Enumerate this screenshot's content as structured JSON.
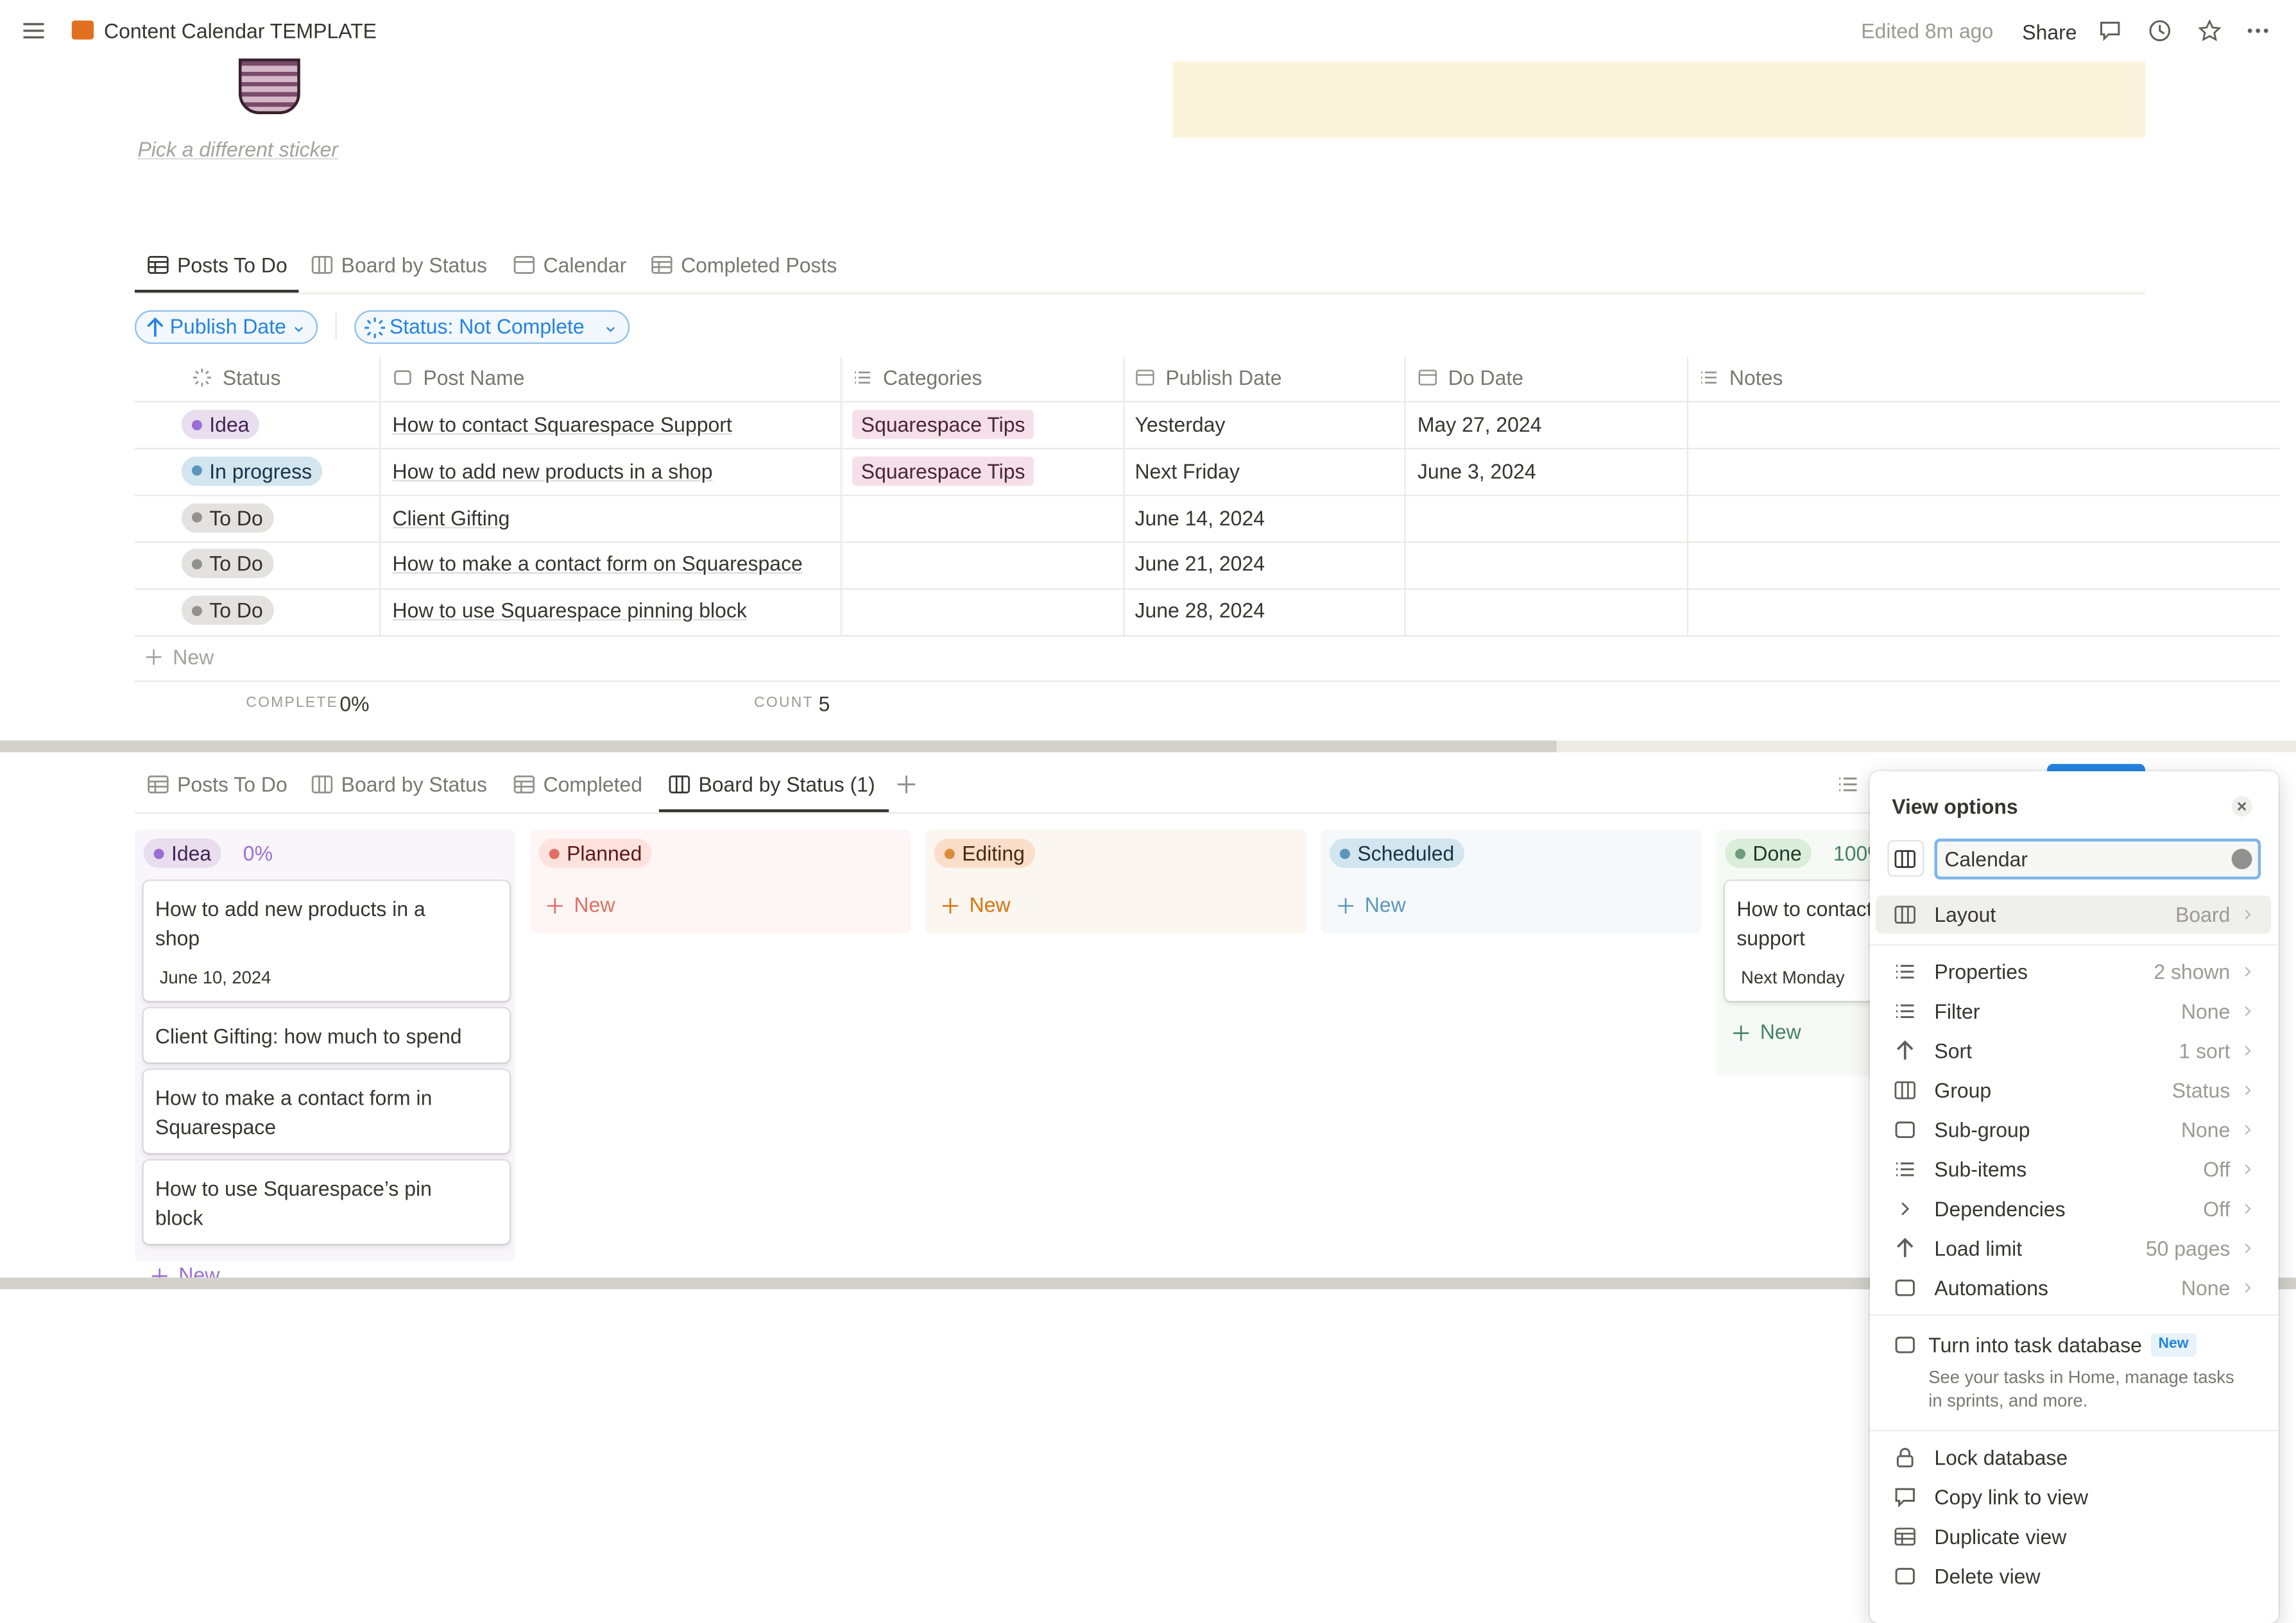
{
  "topbar": {
    "title": "Content Calendar TEMPLATE",
    "edited": "Edited 8m ago",
    "share": "Share"
  },
  "sticker_caption": "Pick a different sticker",
  "tabs_top": [
    "Posts To Do",
    "Board by Status",
    "Calendar",
    "Completed Posts"
  ],
  "filters": [
    "Publish Date",
    "Status: Not Complete"
  ],
  "table": {
    "columns": [
      "Status",
      "Post Name",
      "Categories",
      "Publish Date",
      "Do Date",
      "Notes"
    ],
    "rows": [
      {
        "status": {
          "label": "Idea",
          "color": "purple"
        },
        "name": "How to contact Squarespace Support",
        "category": "Squarespace Tips",
        "publish_date": "Yesterday",
        "do_date": "May 27, 2024"
      },
      {
        "status": {
          "label": "In progress",
          "color": "blue"
        },
        "name": "How to add new products in a shop",
        "category": "Squarespace Tips",
        "publish_date": "Next Friday",
        "do_date": "June 3, 2024"
      },
      {
        "status": {
          "label": "To Do",
          "color": "gray"
        },
        "name": "Client Gifting",
        "publish_date": "June 14, 2024"
      },
      {
        "status": {
          "label": "To Do",
          "color": "gray"
        },
        "name": "How to make a contact form on Squarespace",
        "publish_date": "June 21, 2024"
      },
      {
        "status": {
          "label": "To Do",
          "color": "gray"
        },
        "name": "How to use Squarespace pinning block",
        "publish_date": "June 28, 2024"
      }
    ],
    "new_row": "New",
    "footer": {
      "complete_label": "COMPLETE",
      "complete_value": "0%",
      "count_label": "COUNT",
      "count_value": "5"
    }
  },
  "tabs_bottom": [
    "Posts To Do",
    "Board by Status",
    "Completed",
    "Board by Status (1)"
  ],
  "board": [
    {
      "name": "Idea",
      "color": "purple",
      "progress": "0%",
      "cards": [
        {
          "title": "How to add new products in a shop",
          "date": "June 10, 2024"
        },
        {
          "title": "Client Gifting: how much to spend"
        },
        {
          "title": "How to make a contact form in Squarespace"
        },
        {
          "title": "How to use Squarespace’s pin block"
        }
      ],
      "new": "New"
    },
    {
      "name": "Planned",
      "color": "red",
      "cards": [],
      "new": "New"
    },
    {
      "name": "Editing",
      "color": "orange",
      "cards": [],
      "new": "New"
    },
    {
      "name": "Scheduled",
      "color": "blue",
      "cards": [],
      "new": "New"
    },
    {
      "name": "Done",
      "color": "green",
      "progress": "100%",
      "cards": [
        {
          "title": "How to contact Squarespace support",
          "date": "Next Monday"
        }
      ],
      "new": "New"
    }
  ],
  "view_options": {
    "title": "View options",
    "name": "Calendar",
    "items": [
      {
        "label": "Layout",
        "value": "Board"
      },
      {
        "label": "Properties",
        "value": "2 shown"
      },
      {
        "label": "Filter",
        "value": "None"
      },
      {
        "label": "Sort",
        "value": "1 sort"
      },
      {
        "label": "Group",
        "value": "Status"
      },
      {
        "label": "Sub-group",
        "value": "None"
      },
      {
        "label": "Sub-items",
        "value": "Off"
      },
      {
        "label": "Dependencies",
        "value": "Off"
      },
      {
        "label": "Load limit",
        "value": "50 pages"
      },
      {
        "label": "Automations",
        "value": "None"
      }
    ],
    "task": {
      "label": "Turn into task database",
      "badge": "New",
      "description": "See your tasks in Home, manage tasks in sprints, and more."
    },
    "actions": [
      "Lock database",
      "Copy link to view",
      "Duplicate view",
      "Delete view"
    ]
  }
}
